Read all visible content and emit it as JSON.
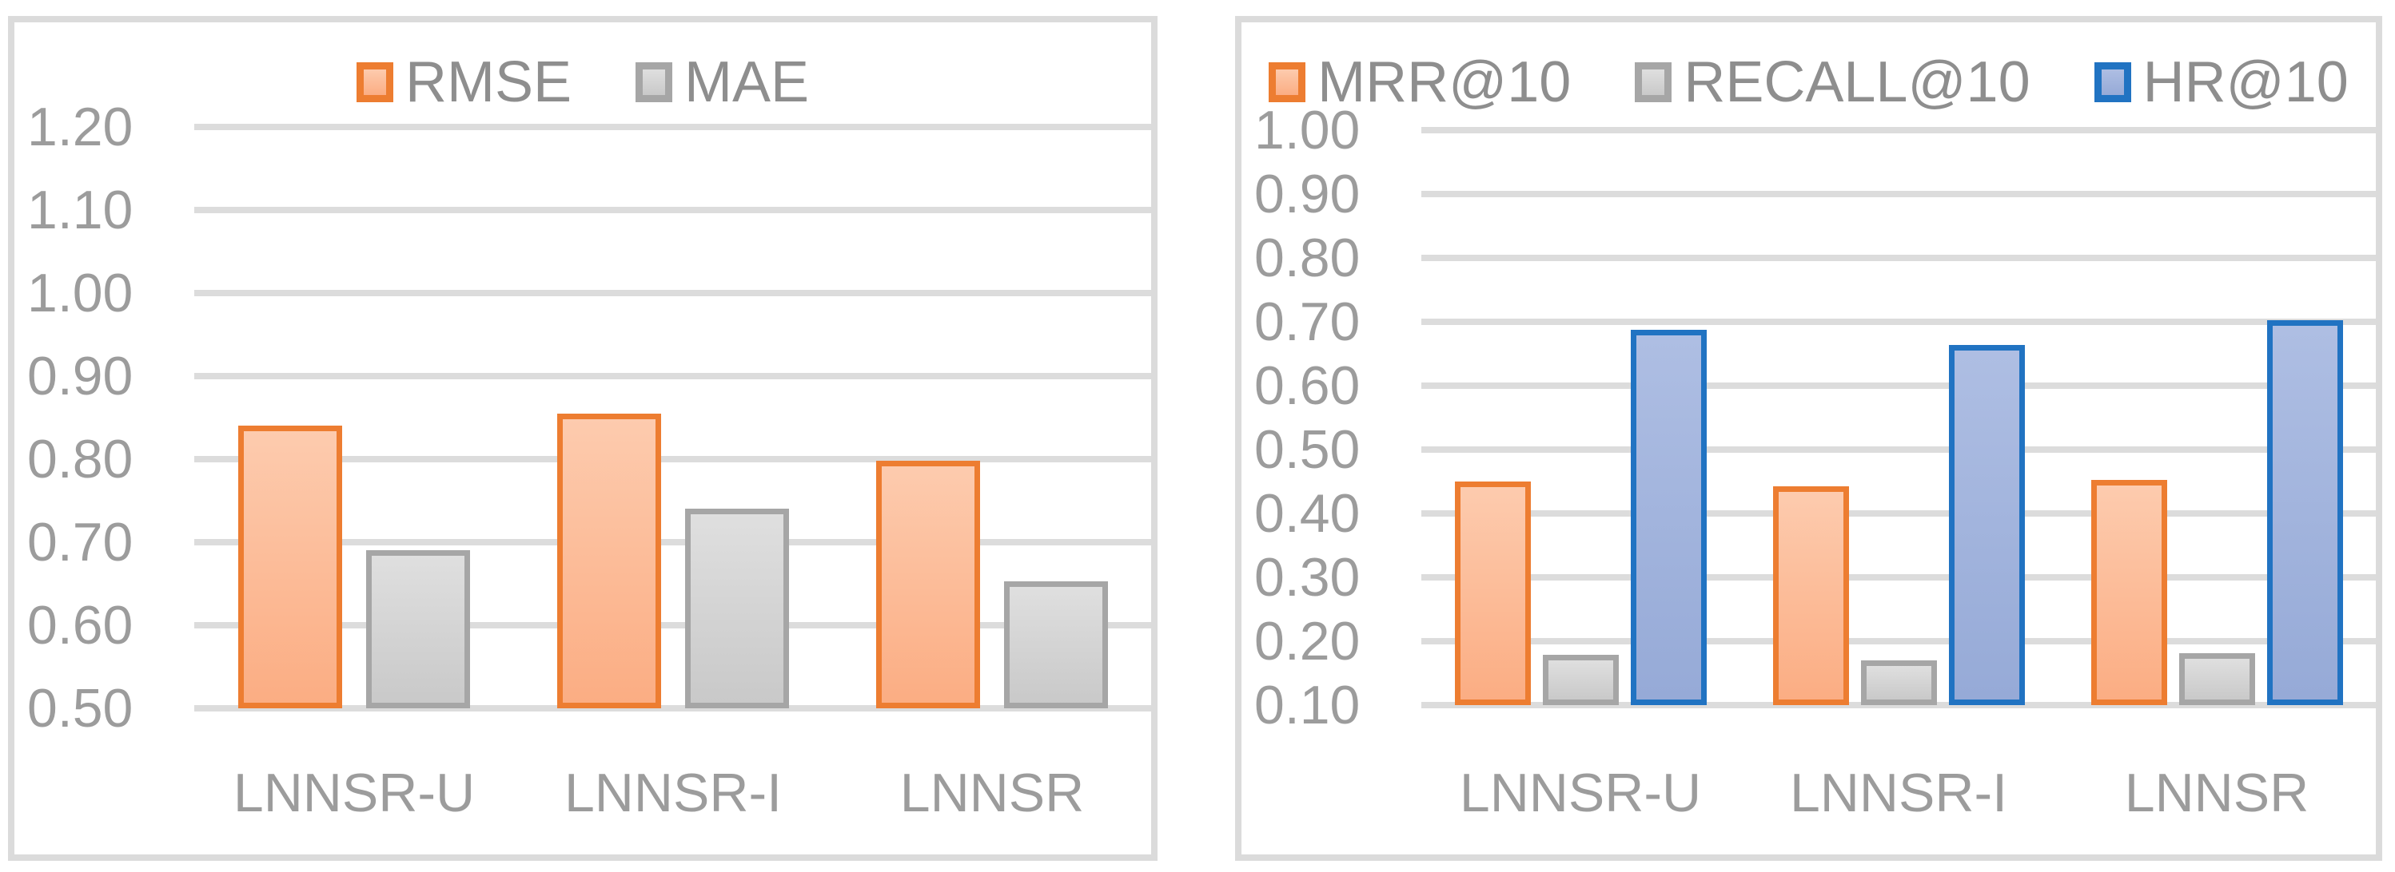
{
  "chart_data": [
    {
      "type": "bar",
      "panel": "left",
      "categories": [
        "LNNSR-U",
        "LNNSR-I",
        "LNNSR"
      ],
      "series": [
        {
          "name": "RMSE",
          "values": [
            0.84,
            0.855,
            0.798
          ],
          "border": "#ED7D31",
          "fill_top": "#FDCBAE",
          "fill_bottom": "#FBAD83"
        },
        {
          "name": "MAE",
          "values": [
            0.69,
            0.74,
            0.653
          ],
          "border": "#A6A6A6",
          "fill_top": "#DFDFDF",
          "fill_bottom": "#C9C9C9"
        }
      ],
      "ylim": [
        0.5,
        1.2
      ],
      "yticks": [
        "1.20",
        "1.10",
        "1.00",
        "0.90",
        "0.80",
        "0.70",
        "0.60",
        "0.50"
      ],
      "legend_position": "top-center",
      "grid": true
    },
    {
      "type": "bar",
      "panel": "right",
      "categories": [
        "LNNSR-U",
        "LNNSR-I",
        "LNNSR"
      ],
      "series": [
        {
          "name": "MRR@10",
          "values": [
            0.45,
            0.443,
            0.453
          ],
          "border": "#ED7D31",
          "fill_top": "#FDCBAE",
          "fill_bottom": "#FBAD83"
        },
        {
          "name": "RECALL@10",
          "values": [
            0.179,
            0.17,
            0.181
          ],
          "border": "#A6A6A6",
          "fill_top": "#DFDFDF",
          "fill_bottom": "#C9C9C9"
        },
        {
          "name": "HR@10",
          "values": [
            0.688,
            0.664,
            0.703
          ],
          "border": "#2173C2",
          "fill_top": "#AEBEE3",
          "fill_bottom": "#96AAD7"
        }
      ],
      "ylim": [
        0.1,
        1.0
      ],
      "yticks": [
        "1.00",
        "0.90",
        "0.80",
        "0.70",
        "0.60",
        "0.50",
        "0.40",
        "0.30",
        "0.20",
        "0.10"
      ],
      "legend_position": "top-center",
      "grid": true
    }
  ],
  "style": {
    "background": "#FFFFFF",
    "panel_border_color": "#DBDBDB",
    "gridline_color": "#DCDCDC",
    "axis_text_color": "#9C9C9C",
    "legend_text_color": "#8E8E8E"
  }
}
